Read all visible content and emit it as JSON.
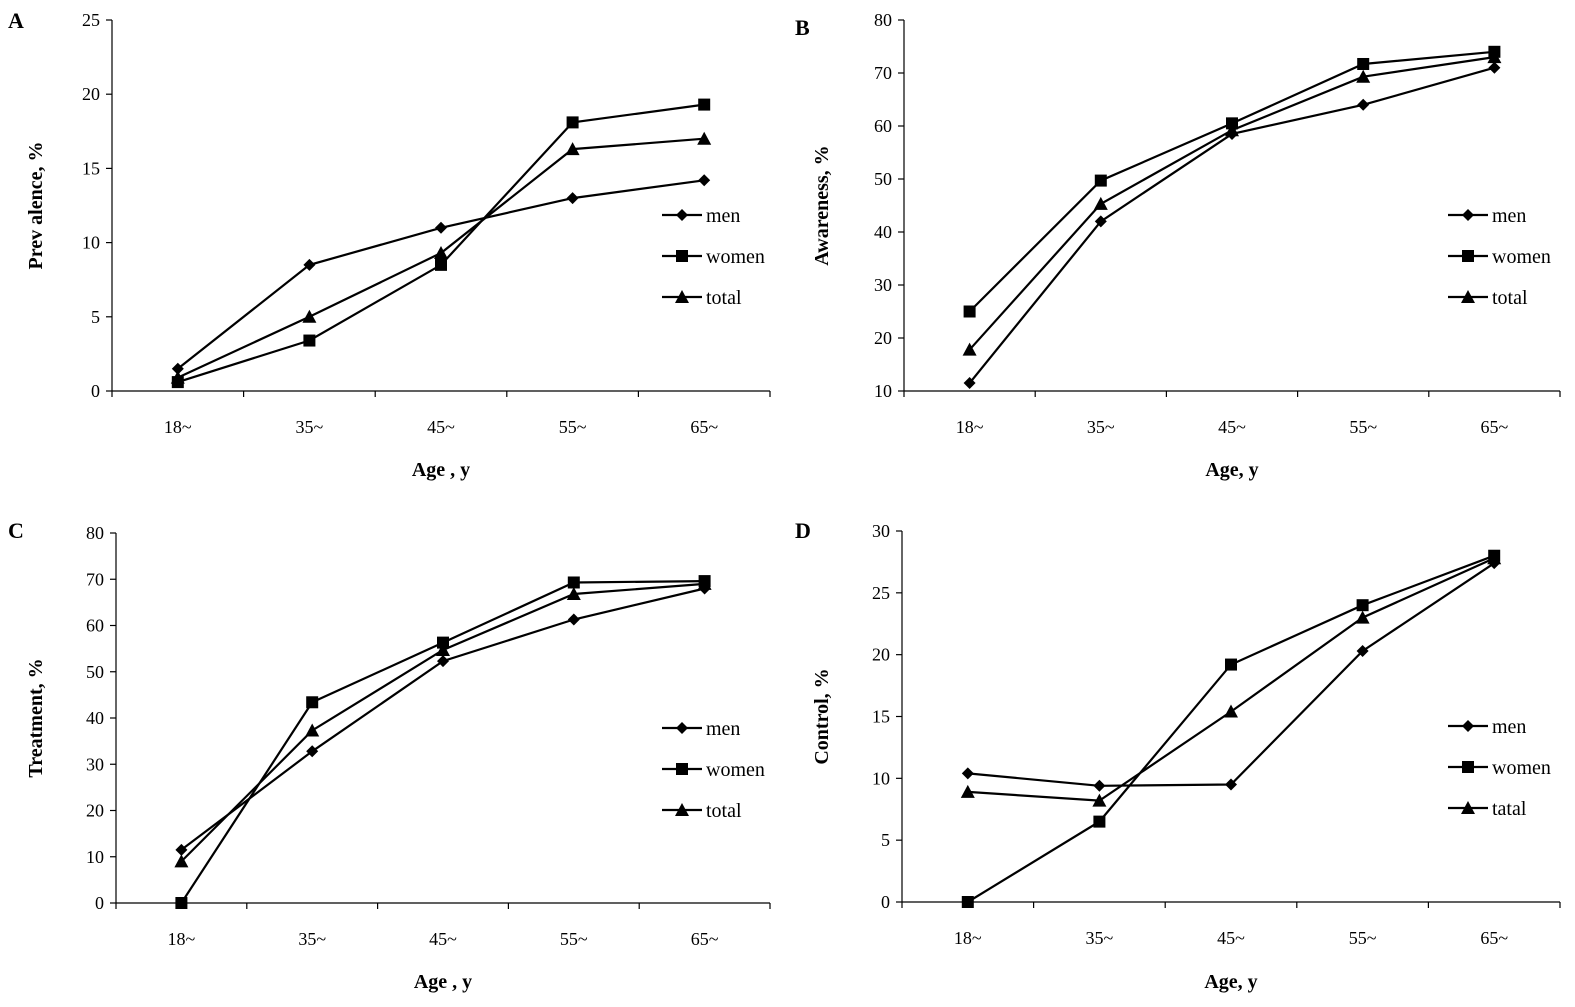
{
  "chart_data": [
    {
      "type": "line",
      "panel": "A",
      "categories": [
        "18~",
        "35~",
        "45~",
        "55~",
        "65~"
      ],
      "ylabel": "Prevalence, %",
      "ylabel_display": "Prev alence, %",
      "xlabel": "Age , y",
      "ylim": [
        0,
        25
      ],
      "yticks": [
        "0",
        "5",
        "10",
        "15",
        "20",
        "25"
      ],
      "series": [
        {
          "name": "men",
          "marker": "diamond",
          "values": [
            1.5,
            8.5,
            11.0,
            13.0,
            14.2
          ]
        },
        {
          "name": "women",
          "marker": "square",
          "values": [
            0.6,
            3.4,
            8.5,
            18.1,
            19.3
          ]
        },
        {
          "name": "total",
          "marker": "triangle",
          "values": [
            0.9,
            5.0,
            9.3,
            16.3,
            17.0
          ]
        }
      ]
    },
    {
      "type": "line",
      "panel": "B",
      "categories": [
        "18~",
        "35~",
        "45~",
        "55~",
        "65~"
      ],
      "ylabel": "Awareness, %",
      "ylabel_display": "Awareness, %",
      "xlabel": "Age, y",
      "ylim": [
        10,
        80
      ],
      "yticks": [
        "10",
        "20",
        "30",
        "40",
        "50",
        "60",
        "70",
        "80"
      ],
      "series": [
        {
          "name": "men",
          "marker": "diamond",
          "values": [
            11.5,
            42.0,
            58.5,
            64.0,
            71.0
          ]
        },
        {
          "name": "women",
          "marker": "square",
          "values": [
            25.0,
            49.7,
            60.5,
            71.7,
            74.0
          ]
        },
        {
          "name": "total",
          "marker": "triangle",
          "values": [
            17.8,
            45.3,
            59.2,
            69.3,
            73.0
          ]
        }
      ]
    },
    {
      "type": "line",
      "panel": "C",
      "categories": [
        "18~",
        "35~",
        "45~",
        "55~",
        "65~"
      ],
      "ylabel": "Treatment, %",
      "ylabel_display": "Treatment, %",
      "xlabel": "Age , y",
      "ylim": [
        0,
        80
      ],
      "yticks": [
        "0",
        "10",
        "20",
        "30",
        "40",
        "50",
        "60",
        "70",
        "80"
      ],
      "series": [
        {
          "name": "men",
          "marker": "diamond",
          "values": [
            11.5,
            32.8,
            52.3,
            61.3,
            68.0
          ]
        },
        {
          "name": "women",
          "marker": "square",
          "values": [
            0.0,
            43.4,
            56.3,
            69.3,
            69.6
          ]
        },
        {
          "name": "total",
          "marker": "triangle",
          "values": [
            9.0,
            37.3,
            54.7,
            66.8,
            69.0
          ]
        }
      ]
    },
    {
      "type": "line",
      "panel": "D",
      "categories": [
        "18~",
        "35~",
        "45~",
        "55~",
        "65~"
      ],
      "ylabel": "Control, %",
      "ylabel_display": "Control, %",
      "xlabel": "Age, y",
      "ylim": [
        0,
        30
      ],
      "yticks": [
        "0",
        "5",
        "10",
        "15",
        "20",
        "25",
        "30"
      ],
      "series": [
        {
          "name": "men",
          "marker": "diamond",
          "values": [
            10.4,
            9.4,
            9.5,
            20.3,
            27.4
          ]
        },
        {
          "name": "women",
          "marker": "square",
          "values": [
            0.0,
            6.5,
            19.2,
            24.0,
            28.0
          ]
        },
        {
          "name": "tatal",
          "marker": "triangle",
          "values": [
            8.9,
            8.2,
            15.4,
            23.0,
            27.8
          ]
        }
      ]
    }
  ]
}
